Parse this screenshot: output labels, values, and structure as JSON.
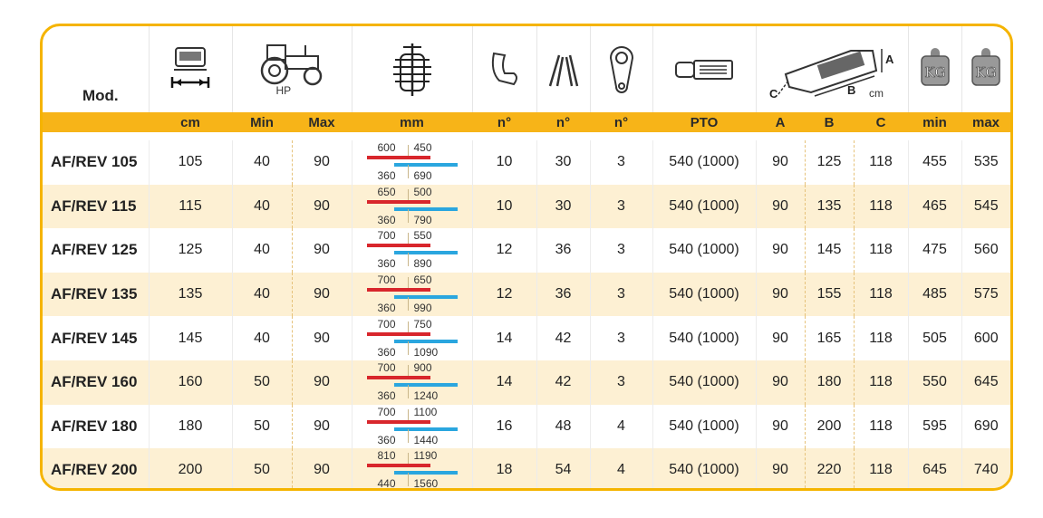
{
  "header": {
    "model_label": "Mod.",
    "hp_label": "HP",
    "dimension_unit": "cm",
    "kg_label": "KG",
    "dimension_letters": [
      "A",
      "B",
      "C"
    ]
  },
  "units": [
    "cm",
    "Min",
    "Max",
    "mm",
    "n°",
    "n°",
    "n°",
    "PTO",
    "A",
    "B",
    "C",
    "min",
    "max"
  ],
  "colors": {
    "accent": "#f5b400",
    "row_alt": "#fdf0d3",
    "range_red": "#d8262c",
    "range_blue": "#2aa6df"
  },
  "rows": [
    {
      "model": "AF/REV 105",
      "cm": "105",
      "hp_min": "40",
      "hp_max": "90",
      "r_top1": "600",
      "r_top2": "450",
      "r_bot1": "360",
      "r_bot2": "690",
      "n1": "10",
      "n2": "30",
      "n3": "3",
      "pto": "540 (1000)",
      "a": "90",
      "b": "125",
      "c": "118",
      "kg_min": "455",
      "kg_max": "535"
    },
    {
      "model": "AF/REV 115",
      "cm": "115",
      "hp_min": "40",
      "hp_max": "90",
      "r_top1": "650",
      "r_top2": "500",
      "r_bot1": "360",
      "r_bot2": "790",
      "n1": "10",
      "n2": "30",
      "n3": "3",
      "pto": "540 (1000)",
      "a": "90",
      "b": "135",
      "c": "118",
      "kg_min": "465",
      "kg_max": "545"
    },
    {
      "model": "AF/REV 125",
      "cm": "125",
      "hp_min": "40",
      "hp_max": "90",
      "r_top1": "700",
      "r_top2": "550",
      "r_bot1": "360",
      "r_bot2": "890",
      "n1": "12",
      "n2": "36",
      "n3": "3",
      "pto": "540 (1000)",
      "a": "90",
      "b": "145",
      "c": "118",
      "kg_min": "475",
      "kg_max": "560"
    },
    {
      "model": "AF/REV 135",
      "cm": "135",
      "hp_min": "40",
      "hp_max": "90",
      "r_top1": "700",
      "r_top2": "650",
      "r_bot1": "360",
      "r_bot2": "990",
      "n1": "12",
      "n2": "36",
      "n3": "3",
      "pto": "540 (1000)",
      "a": "90",
      "b": "155",
      "c": "118",
      "kg_min": "485",
      "kg_max": "575"
    },
    {
      "model": "AF/REV 145",
      "cm": "145",
      "hp_min": "40",
      "hp_max": "90",
      "r_top1": "700",
      "r_top2": "750",
      "r_bot1": "360",
      "r_bot2": "1090",
      "n1": "14",
      "n2": "42",
      "n3": "3",
      "pto": "540 (1000)",
      "a": "90",
      "b": "165",
      "c": "118",
      "kg_min": "505",
      "kg_max": "600"
    },
    {
      "model": "AF/REV 160",
      "cm": "160",
      "hp_min": "50",
      "hp_max": "90",
      "r_top1": "700",
      "r_top2": "900",
      "r_bot1": "360",
      "r_bot2": "1240",
      "n1": "14",
      "n2": "42",
      "n3": "3",
      "pto": "540 (1000)",
      "a": "90",
      "b": "180",
      "c": "118",
      "kg_min": "550",
      "kg_max": "645"
    },
    {
      "model": "AF/REV 180",
      "cm": "180",
      "hp_min": "50",
      "hp_max": "90",
      "r_top1": "700",
      "r_top2": "1100",
      "r_bot1": "360",
      "r_bot2": "1440",
      "n1": "16",
      "n2": "48",
      "n3": "4",
      "pto": "540 (1000)",
      "a": "90",
      "b": "200",
      "c": "118",
      "kg_min": "595",
      "kg_max": "690"
    },
    {
      "model": "AF/REV 200",
      "cm": "200",
      "hp_min": "50",
      "hp_max": "90",
      "r_top1": "810",
      "r_top2": "1190",
      "r_bot1": "440",
      "r_bot2": "1560",
      "n1": "18",
      "n2": "54",
      "n3": "4",
      "pto": "540 (1000)",
      "a": "90",
      "b": "220",
      "c": "118",
      "kg_min": "645",
      "kg_max": "740"
    }
  ]
}
